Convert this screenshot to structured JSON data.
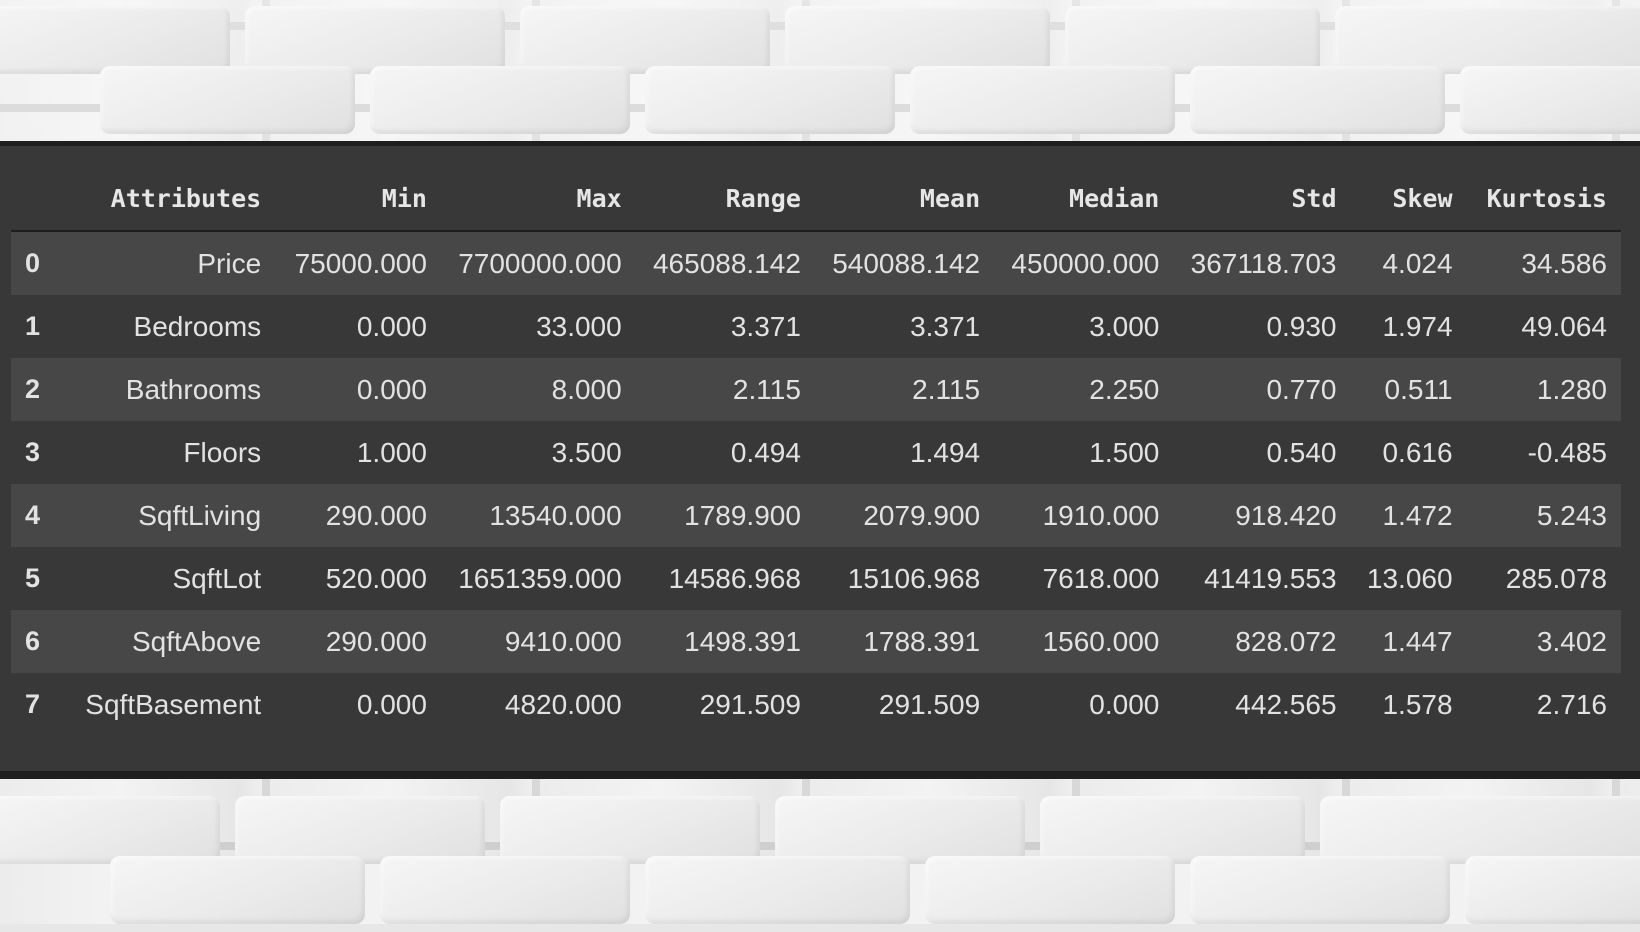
{
  "table": {
    "index_header": "",
    "columns": [
      "Attributes",
      "Min",
      "Max",
      "Range",
      "Mean",
      "Median",
      "Std",
      "Skew",
      "Kurtosis"
    ],
    "rows": [
      {
        "index": "0",
        "cells": [
          "Price",
          "75000.000",
          "7700000.000",
          "465088.142",
          "540088.142",
          "450000.000",
          "367118.703",
          "4.024",
          "34.586"
        ]
      },
      {
        "index": "1",
        "cells": [
          "Bedrooms",
          "0.000",
          "33.000",
          "3.371",
          "3.371",
          "3.000",
          "0.930",
          "1.974",
          "49.064"
        ]
      },
      {
        "index": "2",
        "cells": [
          "Bathrooms",
          "0.000",
          "8.000",
          "2.115",
          "2.115",
          "2.250",
          "0.770",
          "0.511",
          "1.280"
        ]
      },
      {
        "index": "3",
        "cells": [
          "Floors",
          "1.000",
          "3.500",
          "0.494",
          "1.494",
          "1.500",
          "0.540",
          "0.616",
          "-0.485"
        ]
      },
      {
        "index": "4",
        "cells": [
          "SqftLiving",
          "290.000",
          "13540.000",
          "1789.900",
          "2079.900",
          "1910.000",
          "918.420",
          "1.472",
          "5.243"
        ]
      },
      {
        "index": "5",
        "cells": [
          "SqftLot",
          "520.000",
          "1651359.000",
          "14586.968",
          "15106.968",
          "7618.000",
          "41419.553",
          "13.060",
          "285.078"
        ]
      },
      {
        "index": "6",
        "cells": [
          "SqftAbove",
          "290.000",
          "9410.000",
          "1498.391",
          "1788.391",
          "1560.000",
          "828.072",
          "1.447",
          "3.402"
        ]
      },
      {
        "index": "7",
        "cells": [
          "SqftBasement",
          "0.000",
          "4820.000",
          "291.509",
          "291.509",
          "0.000",
          "442.565",
          "1.578",
          "2.716"
        ]
      }
    ]
  },
  "colors": {
    "panel_background": "#383838",
    "row_stripe": "#474747",
    "text": "#e2e2e2",
    "wall": "#e2e2e2"
  }
}
